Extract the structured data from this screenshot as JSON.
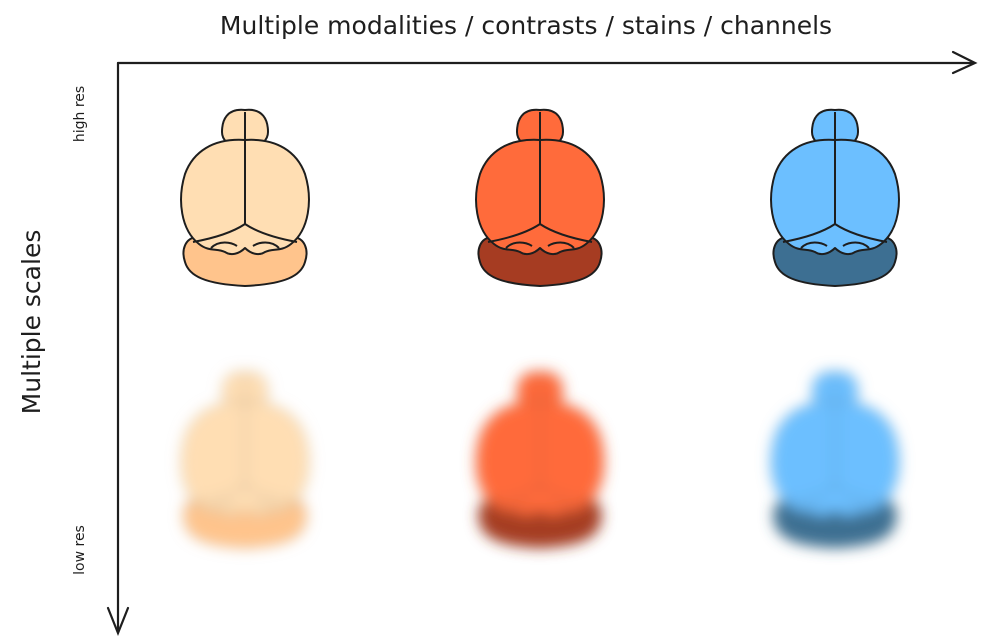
{
  "x_axis": {
    "label": "Multiple modalities / contrasts / stains / channels"
  },
  "y_axis": {
    "label": "Multiple scales",
    "top_label": "high res",
    "bottom_label": "low res"
  },
  "colors": {
    "line": "#1e1e1e",
    "peach": {
      "cortex": "#ffdeb3",
      "cerebellum": "#ffc48c"
    },
    "orange": {
      "cortex": "#ff6b3b",
      "cerebellum": "#a63c22"
    },
    "blue": {
      "cortex": "#6cbfff",
      "cerebellum": "#3d6f92"
    }
  },
  "grid": {
    "columns": [
      "peach",
      "orange",
      "blue"
    ],
    "rows": [
      {
        "resolution": "high",
        "blurred": false
      },
      {
        "resolution": "low",
        "blurred": true
      }
    ]
  }
}
